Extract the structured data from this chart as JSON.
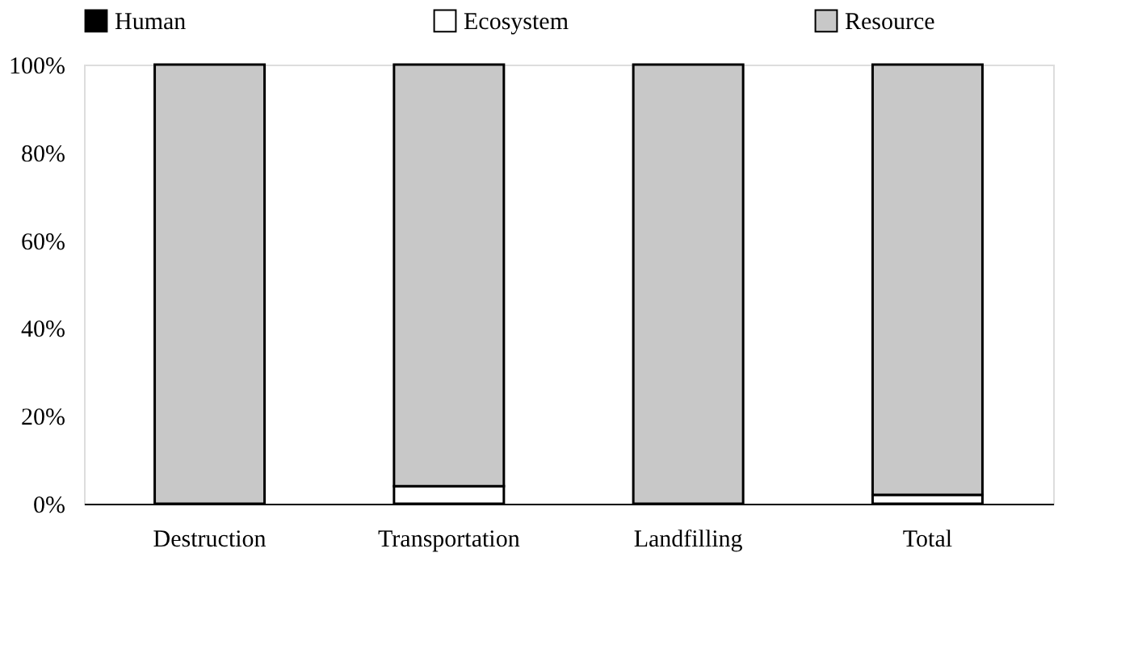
{
  "chart_data": {
    "type": "bar",
    "stacked": true,
    "categories": [
      "Destruction",
      "Transportation",
      "Landfilling",
      "Total"
    ],
    "series": [
      {
        "name": "Human",
        "color": "#000000",
        "values": [
          0,
          0,
          0,
          0
        ]
      },
      {
        "name": "Ecosystem",
        "color": "#ffffff",
        "values": [
          0,
          4,
          0,
          2
        ]
      },
      {
        "name": "Resource",
        "color": "#c8c8c8",
        "values": [
          100,
          96,
          100,
          98
        ]
      }
    ],
    "ylim": [
      0,
      100
    ],
    "yticks": [
      {
        "value": 0,
        "label": "0%"
      },
      {
        "value": 20,
        "label": "20%"
      },
      {
        "value": 40,
        "label": "40%"
      },
      {
        "value": 60,
        "label": "60%"
      },
      {
        "value": 80,
        "label": "80%"
      },
      {
        "value": 100,
        "label": "100%"
      }
    ],
    "grid": false,
    "legend": "top"
  }
}
